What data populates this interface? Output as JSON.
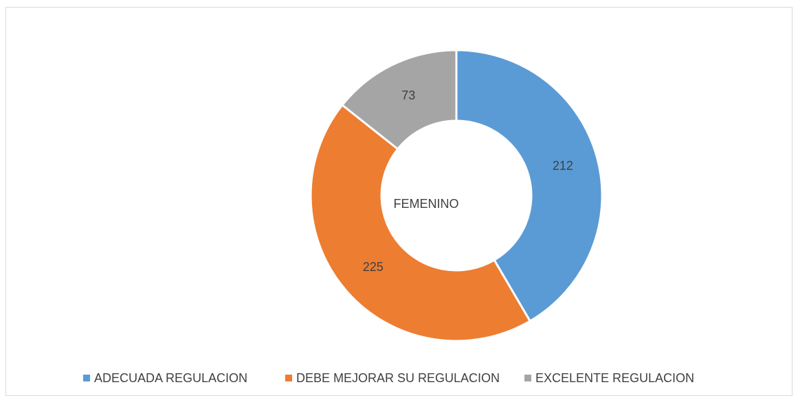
{
  "chart_data": {
    "type": "donut",
    "center_label": "FEMENINO",
    "categories": [
      "ADECUADA REGULACION",
      "DEBE MEJORAR SU REGULACION",
      "EXCELENTE REGULACION"
    ],
    "values": [
      212,
      225,
      73
    ],
    "colors": [
      "#5b9bd5",
      "#ed7d31",
      "#a5a5a5"
    ],
    "legend": "bottom"
  }
}
